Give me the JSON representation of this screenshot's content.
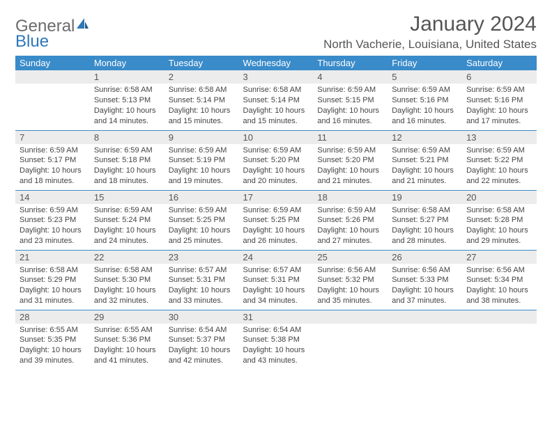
{
  "logo": {
    "general": "General",
    "blue": "Blue"
  },
  "title": "January 2024",
  "location": "North Vacherie, Louisiana, United States",
  "colors": {
    "header_bg": "#3a8bc9",
    "header_fg": "#ffffff",
    "daynum_bg": "#ececec",
    "text": "#555555",
    "border": "#3a8bc9"
  },
  "weekdays": [
    "Sunday",
    "Monday",
    "Tuesday",
    "Wednesday",
    "Thursday",
    "Friday",
    "Saturday"
  ],
  "month_start_weekday": 1,
  "days_in_month": 31,
  "days": {
    "1": {
      "sunrise": "6:58 AM",
      "sunset": "5:13 PM",
      "daylight": "10 hours and 14 minutes."
    },
    "2": {
      "sunrise": "6:58 AM",
      "sunset": "5:14 PM",
      "daylight": "10 hours and 15 minutes."
    },
    "3": {
      "sunrise": "6:58 AM",
      "sunset": "5:14 PM",
      "daylight": "10 hours and 15 minutes."
    },
    "4": {
      "sunrise": "6:59 AM",
      "sunset": "5:15 PM",
      "daylight": "10 hours and 16 minutes."
    },
    "5": {
      "sunrise": "6:59 AM",
      "sunset": "5:16 PM",
      "daylight": "10 hours and 16 minutes."
    },
    "6": {
      "sunrise": "6:59 AM",
      "sunset": "5:16 PM",
      "daylight": "10 hours and 17 minutes."
    },
    "7": {
      "sunrise": "6:59 AM",
      "sunset": "5:17 PM",
      "daylight": "10 hours and 18 minutes."
    },
    "8": {
      "sunrise": "6:59 AM",
      "sunset": "5:18 PM",
      "daylight": "10 hours and 18 minutes."
    },
    "9": {
      "sunrise": "6:59 AM",
      "sunset": "5:19 PM",
      "daylight": "10 hours and 19 minutes."
    },
    "10": {
      "sunrise": "6:59 AM",
      "sunset": "5:20 PM",
      "daylight": "10 hours and 20 minutes."
    },
    "11": {
      "sunrise": "6:59 AM",
      "sunset": "5:20 PM",
      "daylight": "10 hours and 21 minutes."
    },
    "12": {
      "sunrise": "6:59 AM",
      "sunset": "5:21 PM",
      "daylight": "10 hours and 21 minutes."
    },
    "13": {
      "sunrise": "6:59 AM",
      "sunset": "5:22 PM",
      "daylight": "10 hours and 22 minutes."
    },
    "14": {
      "sunrise": "6:59 AM",
      "sunset": "5:23 PM",
      "daylight": "10 hours and 23 minutes."
    },
    "15": {
      "sunrise": "6:59 AM",
      "sunset": "5:24 PM",
      "daylight": "10 hours and 24 minutes."
    },
    "16": {
      "sunrise": "6:59 AM",
      "sunset": "5:25 PM",
      "daylight": "10 hours and 25 minutes."
    },
    "17": {
      "sunrise": "6:59 AM",
      "sunset": "5:25 PM",
      "daylight": "10 hours and 26 minutes."
    },
    "18": {
      "sunrise": "6:59 AM",
      "sunset": "5:26 PM",
      "daylight": "10 hours and 27 minutes."
    },
    "19": {
      "sunrise": "6:58 AM",
      "sunset": "5:27 PM",
      "daylight": "10 hours and 28 minutes."
    },
    "20": {
      "sunrise": "6:58 AM",
      "sunset": "5:28 PM",
      "daylight": "10 hours and 29 minutes."
    },
    "21": {
      "sunrise": "6:58 AM",
      "sunset": "5:29 PM",
      "daylight": "10 hours and 31 minutes."
    },
    "22": {
      "sunrise": "6:58 AM",
      "sunset": "5:30 PM",
      "daylight": "10 hours and 32 minutes."
    },
    "23": {
      "sunrise": "6:57 AM",
      "sunset": "5:31 PM",
      "daylight": "10 hours and 33 minutes."
    },
    "24": {
      "sunrise": "6:57 AM",
      "sunset": "5:31 PM",
      "daylight": "10 hours and 34 minutes."
    },
    "25": {
      "sunrise": "6:56 AM",
      "sunset": "5:32 PM",
      "daylight": "10 hours and 35 minutes."
    },
    "26": {
      "sunrise": "6:56 AM",
      "sunset": "5:33 PM",
      "daylight": "10 hours and 37 minutes."
    },
    "27": {
      "sunrise": "6:56 AM",
      "sunset": "5:34 PM",
      "daylight": "10 hours and 38 minutes."
    },
    "28": {
      "sunrise": "6:55 AM",
      "sunset": "5:35 PM",
      "daylight": "10 hours and 39 minutes."
    },
    "29": {
      "sunrise": "6:55 AM",
      "sunset": "5:36 PM",
      "daylight": "10 hours and 41 minutes."
    },
    "30": {
      "sunrise": "6:54 AM",
      "sunset": "5:37 PM",
      "daylight": "10 hours and 42 minutes."
    },
    "31": {
      "sunrise": "6:54 AM",
      "sunset": "5:38 PM",
      "daylight": "10 hours and 43 minutes."
    }
  },
  "labels": {
    "sunrise": "Sunrise:",
    "sunset": "Sunset:",
    "daylight": "Daylight:"
  }
}
